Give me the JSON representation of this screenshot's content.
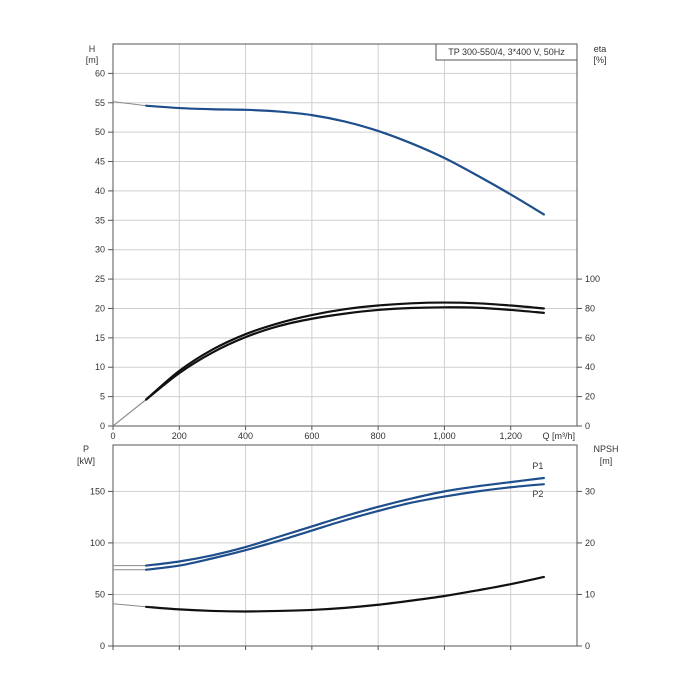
{
  "chart_data": [
    {
      "type": "line",
      "title": "TP 300-550/4, 3*400 V, 50Hz",
      "xlabel": "Q [m³/h]",
      "x_ticks": [
        "0",
        "200",
        "400",
        "600",
        "800",
        "1,000",
        "1,200"
      ],
      "xlim": [
        0,
        1400
      ],
      "left_axis": {
        "label_line1": "H",
        "label_line2": "[m]",
        "ticks": [
          "0",
          "5",
          "10",
          "15",
          "20",
          "25",
          "30",
          "35",
          "40",
          "45",
          "50",
          "55",
          "60"
        ],
        "ylim": [
          0,
          65
        ]
      },
      "right_axis": {
        "label_line1": "eta",
        "label_line2": "[%]",
        "ticks": [
          "0",
          "20",
          "40",
          "60",
          "80",
          "100"
        ],
        "ylim": [
          0,
          260
        ]
      },
      "series": [
        {
          "axis": "left",
          "color": "#1f4e8c",
          "x": [
            0,
            100,
            200,
            300,
            400,
            500,
            600,
            700,
            800,
            900,
            1000,
            1100,
            1200,
            1300
          ],
          "y": [
            55.2,
            54.5,
            54.1,
            53.9,
            53.8,
            53.5,
            52.9,
            51.8,
            50.2,
            48.1,
            45.6,
            42.6,
            39.4,
            36.0
          ],
          "extrapolated_below_x": 100
        },
        {
          "axis": "right",
          "color": "#111111",
          "x": [
            0,
            100,
            200,
            300,
            400,
            500,
            600,
            700,
            800,
            900,
            1000,
            1100,
            1200,
            1300
          ],
          "y": [
            0,
            18,
            36,
            50,
            60.5,
            68,
            73,
            76.5,
            79,
            80.3,
            80.8,
            80.5,
            79,
            77
          ],
          "extrapolated_below_x": 100
        },
        {
          "axis": "right",
          "color": "#111111",
          "x": [
            0,
            100,
            200,
            300,
            400,
            500,
            600,
            700,
            800,
            900,
            1000,
            1100,
            1200,
            1300
          ],
          "y": [
            0,
            18,
            37.5,
            52,
            62.5,
            70,
            75.5,
            79.5,
            82,
            83.5,
            84,
            83.5,
            82,
            80
          ],
          "extrapolated_below_x": 100
        }
      ]
    },
    {
      "type": "line",
      "x_ticks": [
        "0",
        "200",
        "400",
        "600",
        "800",
        "1,000",
        "1,200"
      ],
      "xlim": [
        0,
        1400
      ],
      "left_axis": {
        "label_line1": "P",
        "label_line2": "[kW]",
        "ticks": [
          "0",
          "50",
          "100",
          "150"
        ],
        "ylim": [
          0,
          195
        ]
      },
      "right_axis": {
        "label_line1": "NPSH",
        "label_line2": "[m]",
        "ticks": [
          "0",
          "10",
          "20",
          "30"
        ],
        "ylim": [
          0,
          39
        ]
      },
      "series": [
        {
          "name": "P1",
          "axis": "left",
          "color": "#1f4e8c",
          "x": [
            0,
            100,
            200,
            300,
            400,
            500,
            600,
            700,
            800,
            900,
            1000,
            1100,
            1200,
            1300
          ],
          "y": [
            78,
            78,
            82,
            88,
            96,
            106,
            116,
            126,
            135,
            143,
            150,
            155,
            159,
            163
          ],
          "extrapolated_below_x": 100
        },
        {
          "name": "P2",
          "axis": "left",
          "color": "#1f4e8c",
          "x": [
            0,
            100,
            200,
            300,
            400,
            500,
            600,
            700,
            800,
            900,
            1000,
            1100,
            1200,
            1300
          ],
          "y": [
            74,
            74,
            78,
            85,
            93,
            102,
            112,
            122,
            131,
            139,
            145,
            150,
            154,
            157
          ],
          "extrapolated_below_x": 100
        },
        {
          "axis": "right",
          "color": "#111111",
          "x": [
            0,
            100,
            200,
            300,
            400,
            500,
            600,
            700,
            800,
            900,
            1000,
            1100,
            1200,
            1300
          ],
          "y": [
            8.2,
            7.6,
            7.1,
            6.8,
            6.7,
            6.8,
            7.0,
            7.4,
            8.0,
            8.8,
            9.7,
            10.8,
            12.0,
            13.4
          ],
          "extrapolated_below_x": 100
        }
      ]
    }
  ]
}
